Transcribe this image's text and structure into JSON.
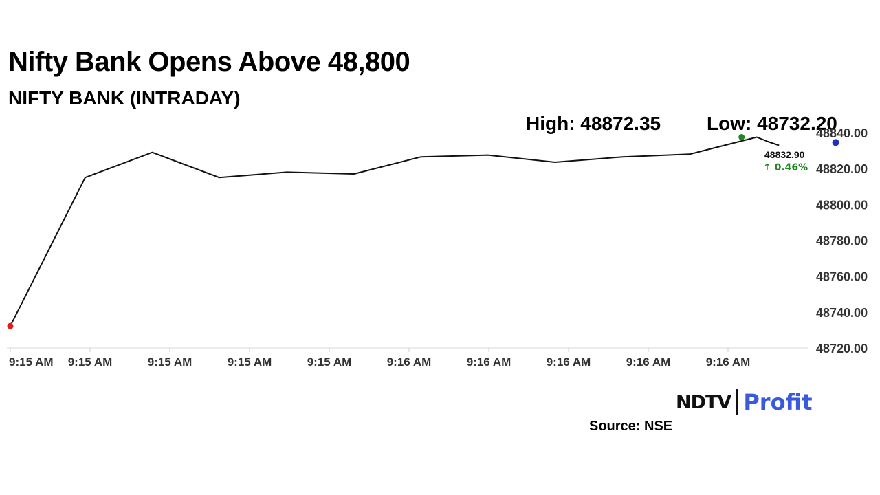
{
  "header": {
    "title": "Nifty Bank Opens Above 48,800",
    "subtitle": "NIFTY BANK (INTRADAY)"
  },
  "stats": {
    "high_label": "High: 48872.35",
    "low_label": "Low: 48732.20"
  },
  "chart_data": {
    "type": "line",
    "title": "NIFTY BANK (INTRADAY)",
    "x_tick_labels": [
      "9:15 AM",
      "9:15 AM",
      "9:15 AM",
      "9:15 AM",
      "9:15 AM",
      "9:16 AM",
      "9:16 AM",
      "9:16 AM",
      "9:16 AM",
      "9:16 AM"
    ],
    "y_ticks": [
      48720,
      48740,
      48760,
      48780,
      48800,
      48820,
      48840
    ],
    "y_tick_labels": [
      "48720.00",
      "48740.00",
      "48760.00",
      "48780.00",
      "48800.00",
      "48820.00",
      "48840.00"
    ],
    "ylim": [
      48720,
      48840
    ],
    "x_range": [
      0,
      10
    ],
    "grid": false,
    "legend": "none",
    "series": [
      {
        "points": [
          {
            "x": 0.0,
            "y": 48732.2
          },
          {
            "x": 0.94,
            "y": 48815.0
          },
          {
            "x": 1.78,
            "y": 48829.0
          },
          {
            "x": 2.62,
            "y": 48815.0
          },
          {
            "x": 3.47,
            "y": 48818.0
          },
          {
            "x": 4.31,
            "y": 48817.0
          },
          {
            "x": 5.15,
            "y": 48826.5
          },
          {
            "x": 5.99,
            "y": 48827.5
          },
          {
            "x": 6.83,
            "y": 48823.5
          },
          {
            "x": 7.68,
            "y": 48826.5
          },
          {
            "x": 8.52,
            "y": 48828.0
          },
          {
            "x": 9.36,
            "y": 48837.5
          },
          {
            "x": 9.5,
            "y": 48835.0
          },
          {
            "x": 9.64,
            "y": 48832.9
          }
        ]
      }
    ],
    "markers": {
      "open": {
        "x": 0.0,
        "y": 48732.2,
        "color": "#e31b1b"
      },
      "high": {
        "x": 9.17,
        "y": 48837.5,
        "color": "#1e8a1e"
      },
      "current": {
        "x": 10.35,
        "y": 48834.5,
        "color": "#1f2fbf"
      }
    },
    "last_value_label": "48832.90",
    "change_label": "↑ 0.46%",
    "change_color": "#1e8a1e",
    "line_color": "#111111"
  },
  "footer": {
    "logo_ndtv": "NDTV",
    "logo_profit": "Profit",
    "source": "Source: NSE"
  }
}
